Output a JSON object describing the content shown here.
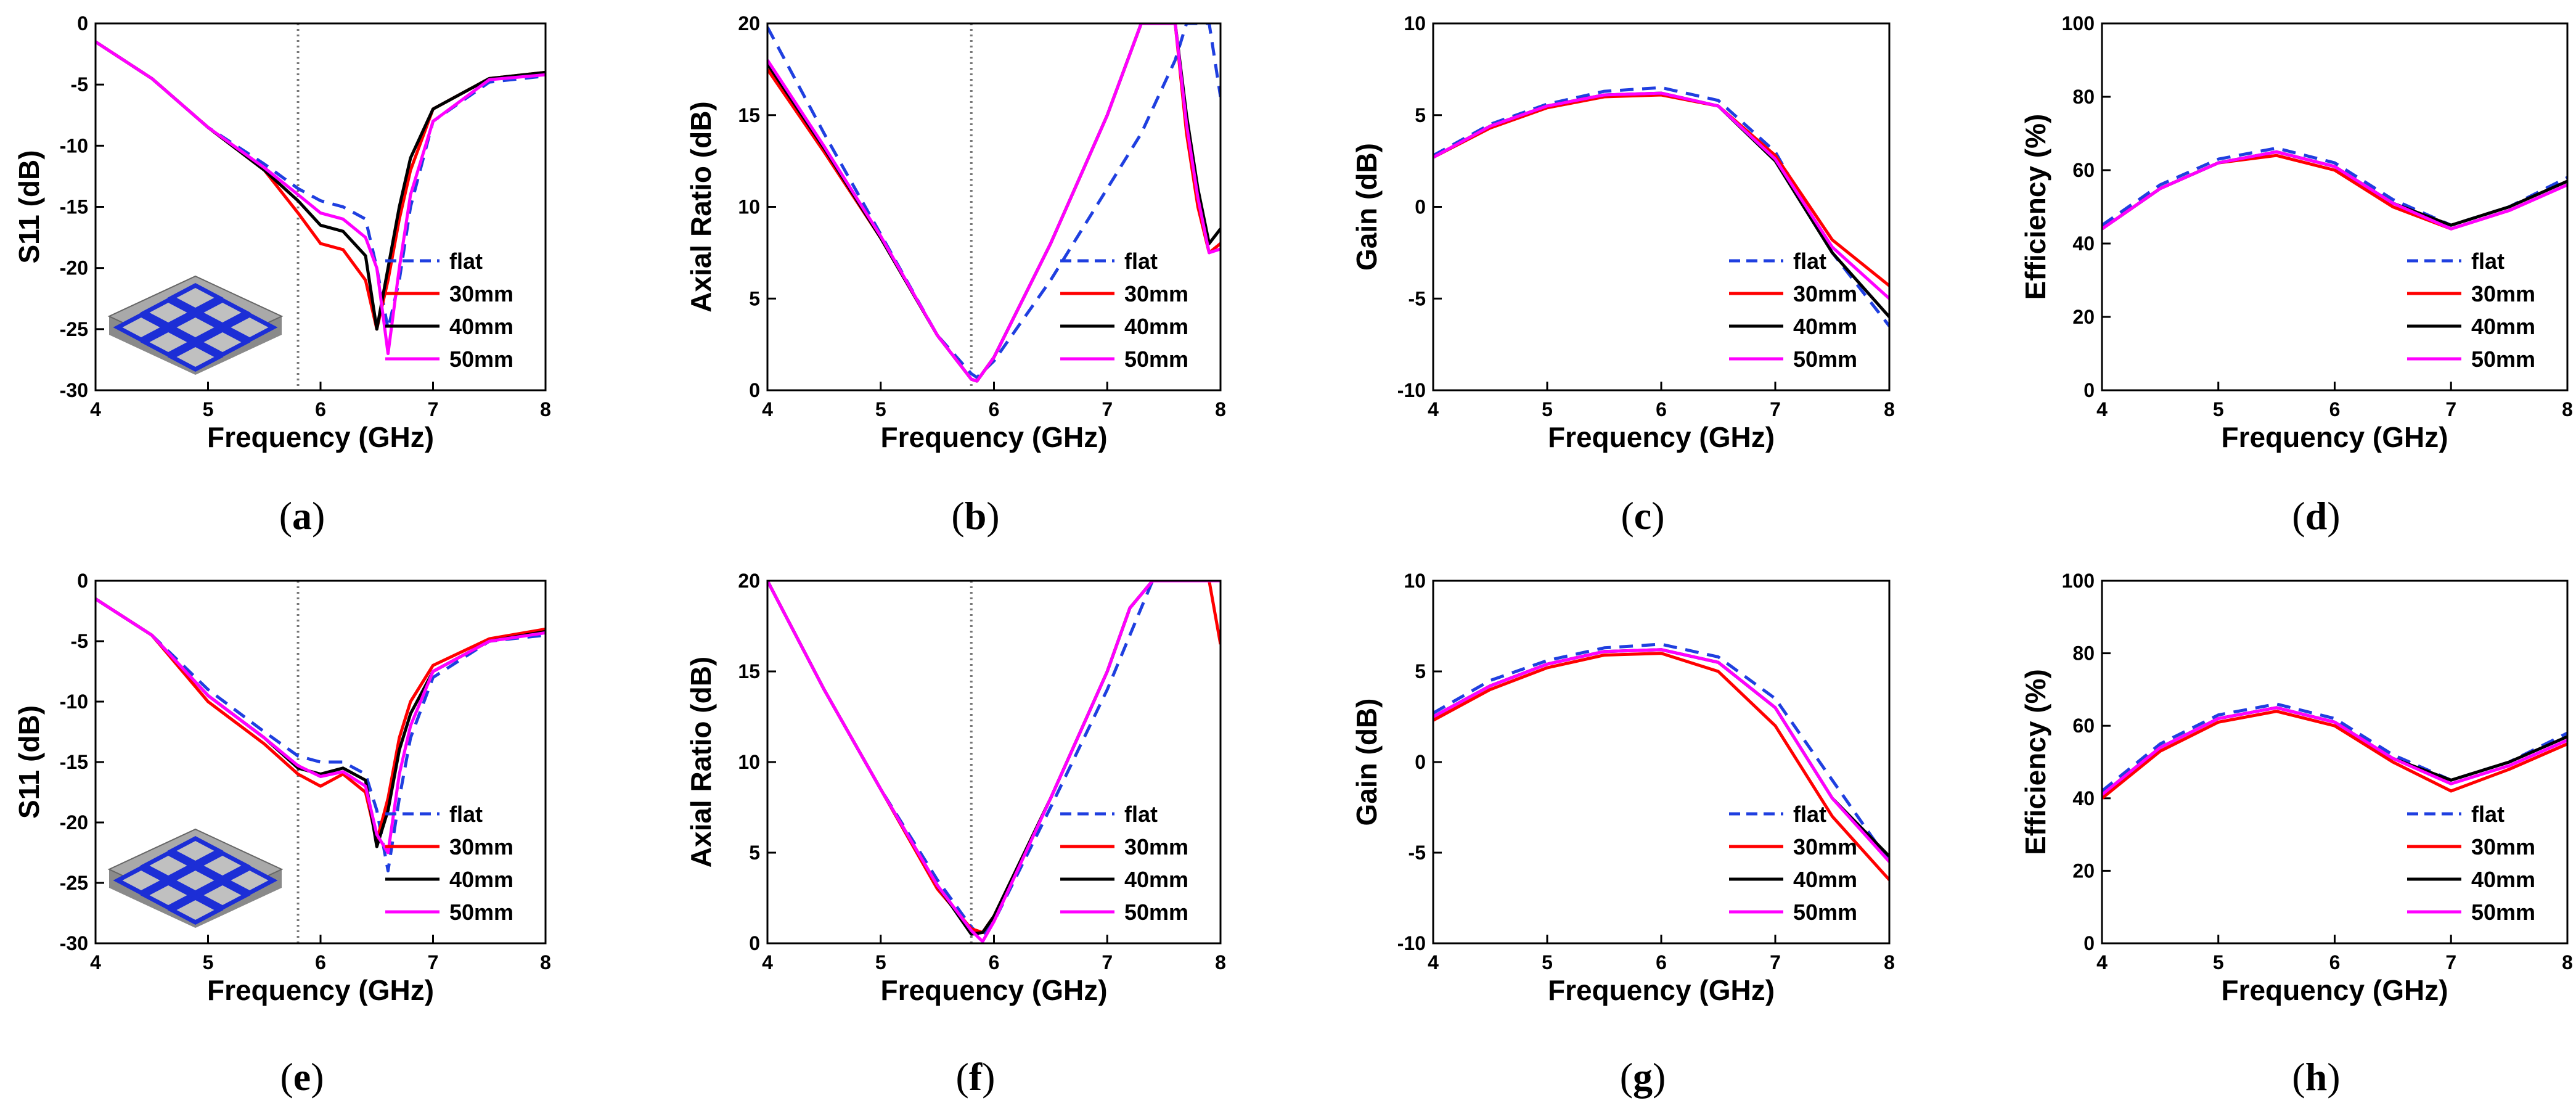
{
  "colors": {
    "flat": "#1f3fe0",
    "30mm": "#ff0000",
    "40mm": "#000000",
    "50mm": "#ff00ff",
    "marker": "#777777"
  },
  "chart_data": [
    {
      "id": "a",
      "type": "line",
      "caption_letter": "a",
      "xlabel": "Frequency (GHz)",
      "ylabel": "S11 (dB)",
      "xlim": [
        4,
        8
      ],
      "ylim": [
        -30,
        0
      ],
      "xticks": [
        4,
        5,
        6,
        7,
        8
      ],
      "yticks": [
        0,
        -5,
        -10,
        -15,
        -20,
        -25,
        -30
      ],
      "marker_x": 5.8,
      "legend_position": "bottom-right",
      "inset": "curved-array",
      "x": [
        4,
        4.5,
        5,
        5.5,
        5.8,
        6,
        6.2,
        6.4,
        6.5,
        6.6,
        6.7,
        6.8,
        7,
        7.5,
        8
      ],
      "series": [
        {
          "name": "flat",
          "values": [
            -1.5,
            -4.5,
            -8.5,
            -11.5,
            -13.5,
            -14.5,
            -15,
            -16,
            -20,
            -25,
            -21,
            -15,
            -8,
            -4.8,
            -4.3
          ]
        },
        {
          "name": "30mm",
          "values": [
            -1.5,
            -4.5,
            -8.5,
            -12,
            -15.5,
            -18,
            -18.5,
            -21,
            -25,
            -21,
            -16,
            -12,
            -7,
            -4.5,
            -4
          ]
        },
        {
          "name": "40mm",
          "values": [
            -1.5,
            -4.5,
            -8.5,
            -12,
            -14.5,
            -16.5,
            -17,
            -19,
            -25,
            -20,
            -15,
            -11,
            -7,
            -4.5,
            -4
          ]
        },
        {
          "name": "50mm",
          "values": [
            -1.5,
            -4.5,
            -8.5,
            -11.8,
            -14,
            -15.5,
            -16,
            -17.5,
            -20,
            -27,
            -20,
            -14,
            -8,
            -4.6,
            -4.2
          ]
        }
      ]
    },
    {
      "id": "b",
      "type": "line",
      "caption_letter": "b",
      "xlabel": "Frequency (GHz)",
      "ylabel": "Axial Ratio (dB)",
      "xlim": [
        4,
        8
      ],
      "ylim": [
        0,
        20
      ],
      "xticks": [
        4,
        5,
        6,
        7,
        8
      ],
      "yticks": [
        0,
        5,
        10,
        15,
        20
      ],
      "marker_x": 5.8,
      "legend_position": "bottom-right",
      "x": [
        4,
        4.5,
        5,
        5.5,
        5.8,
        5.85,
        6,
        6.5,
        7,
        7.3,
        7.6,
        7.7,
        7.8,
        7.9,
        8
      ],
      "series": [
        {
          "name": "flat",
          "values": [
            19.8,
            14,
            8.5,
            3,
            0.9,
            0.7,
            1.6,
            6,
            11,
            14,
            18,
            20,
            20,
            20,
            16
          ]
        },
        {
          "name": "30mm",
          "values": [
            17.5,
            13,
            8.3,
            3,
            0.6,
            0.5,
            1.8,
            8,
            15,
            20,
            20,
            14,
            10,
            7.5,
            8
          ]
        },
        {
          "name": "40mm",
          "values": [
            17.8,
            13.2,
            8.3,
            3,
            0.6,
            0.5,
            1.8,
            8,
            15,
            20,
            20,
            15,
            11,
            8,
            8.8
          ]
        },
        {
          "name": "50mm",
          "values": [
            18,
            13.3,
            8.4,
            3,
            0.6,
            0.5,
            1.8,
            8,
            15,
            20,
            20,
            14.5,
            10.5,
            7.5,
            7.7
          ]
        }
      ]
    },
    {
      "id": "c",
      "type": "line",
      "caption_letter": "c",
      "xlabel": "Frequency (GHz)",
      "ylabel": "Gain (dB)",
      "xlim": [
        4,
        8
      ],
      "ylim": [
        -10,
        10
      ],
      "xticks": [
        4,
        5,
        6,
        7,
        8
      ],
      "yticks": [
        10,
        5,
        0,
        -5,
        -10
      ],
      "legend_position": "bottom-right",
      "x": [
        4,
        4.5,
        5,
        5.5,
        6,
        6.5,
        7,
        7.5,
        8
      ],
      "series": [
        {
          "name": "flat",
          "values": [
            2.8,
            4.5,
            5.6,
            6.3,
            6.5,
            5.8,
            3,
            -2.5,
            -6.5
          ]
        },
        {
          "name": "30mm",
          "values": [
            2.7,
            4.3,
            5.4,
            6,
            6.1,
            5.5,
            2.8,
            -1.8,
            -4.3
          ]
        },
        {
          "name": "40mm",
          "values": [
            2.7,
            4.4,
            5.5,
            6.1,
            6.2,
            5.5,
            2.5,
            -2.5,
            -6
          ]
        },
        {
          "name": "50mm",
          "values": [
            2.7,
            4.4,
            5.5,
            6.1,
            6.2,
            5.5,
            2.6,
            -2.2,
            -5
          ]
        }
      ]
    },
    {
      "id": "d",
      "type": "line",
      "caption_letter": "d",
      "xlabel": "Frequency (GHz)",
      "ylabel": "Efficiency (%)",
      "xlim": [
        4,
        8
      ],
      "ylim": [
        0,
        100
      ],
      "xticks": [
        4,
        5,
        6,
        7,
        8
      ],
      "yticks": [
        0,
        20,
        40,
        60,
        80,
        100
      ],
      "legend_position": "bottom-right",
      "x": [
        4,
        4.5,
        5,
        5.5,
        6,
        6.5,
        7,
        7.5,
        8
      ],
      "series": [
        {
          "name": "flat",
          "values": [
            45,
            56,
            63,
            66,
            62,
            52,
            45,
            50,
            58
          ]
        },
        {
          "name": "30mm",
          "values": [
            44,
            55,
            62,
            64,
            60,
            50,
            44,
            49,
            56
          ]
        },
        {
          "name": "40mm",
          "values": [
            44,
            55,
            62,
            65,
            61,
            51,
            45,
            50,
            57
          ]
        },
        {
          "name": "50mm",
          "values": [
            44,
            55,
            62,
            65,
            61,
            51,
            44,
            49,
            56
          ]
        }
      ]
    },
    {
      "id": "e",
      "type": "line",
      "caption_letter": "e",
      "xlabel": "Frequency (GHz)",
      "ylabel": "S11 (dB)",
      "xlim": [
        4,
        8
      ],
      "ylim": [
        -30,
        0
      ],
      "xticks": [
        4,
        5,
        6,
        7,
        8
      ],
      "yticks": [
        0,
        -5,
        -10,
        -15,
        -20,
        -25,
        -30
      ],
      "marker_x": 5.8,
      "legend_position": "bottom-right",
      "inset": "curved-array",
      "x": [
        4,
        4.5,
        5,
        5.5,
        5.8,
        6,
        6.2,
        6.4,
        6.5,
        6.6,
        6.7,
        6.8,
        7,
        7.5,
        8
      ],
      "series": [
        {
          "name": "flat",
          "values": [
            -1.5,
            -4.5,
            -9,
            -12.5,
            -14.5,
            -15,
            -15,
            -16,
            -19,
            -24,
            -18,
            -13,
            -8,
            -5,
            -4.5
          ]
        },
        {
          "name": "30mm",
          "values": [
            -1.5,
            -4.5,
            -10,
            -13.5,
            -16,
            -17,
            -16,
            -17.5,
            -21.5,
            -18,
            -13,
            -10,
            -7,
            -4.8,
            -4
          ]
        },
        {
          "name": "40mm",
          "values": [
            -1.5,
            -4.5,
            -9.5,
            -13,
            -15.5,
            -16,
            -15.5,
            -16.5,
            -22,
            -19,
            -14,
            -11,
            -7.5,
            -5,
            -4.2
          ]
        },
        {
          "name": "50mm",
          "values": [
            -1.5,
            -4.5,
            -9.5,
            -13,
            -15.3,
            -16.2,
            -15.8,
            -17,
            -21,
            -22.5,
            -16,
            -12,
            -7.5,
            -5,
            -4.3
          ]
        }
      ]
    },
    {
      "id": "f",
      "type": "line",
      "caption_letter": "f",
      "xlabel": "Frequency (GHz)",
      "ylabel": "Axial Ratio (dB)",
      "xlim": [
        4,
        8
      ],
      "ylim": [
        0,
        20
      ],
      "xticks": [
        4,
        5,
        6,
        7,
        8
      ],
      "yticks": [
        0,
        5,
        10,
        15,
        20
      ],
      "marker_x": 5.8,
      "legend_position": "bottom-right",
      "x": [
        4,
        4.5,
        5,
        5.5,
        5.8,
        5.9,
        6,
        6.5,
        7,
        7.2,
        7.4,
        7.6,
        7.8,
        7.9,
        8
      ],
      "series": [
        {
          "name": "flat",
          "values": [
            20,
            14,
            8.5,
            3.5,
            0.9,
            0.3,
            1.2,
            7.5,
            14,
            17,
            20,
            20,
            20,
            20,
            20
          ]
        },
        {
          "name": "30mm",
          "values": [
            20,
            14,
            8.5,
            3,
            0.8,
            0.6,
            1.5,
            8,
            15,
            18.5,
            20,
            20,
            20,
            20,
            16.5
          ]
        },
        {
          "name": "40mm",
          "values": [
            20,
            14,
            8.5,
            3.2,
            0.5,
            0.6,
            1.5,
            8,
            15,
            18.5,
            20,
            20,
            20,
            20,
            20
          ]
        },
        {
          "name": "50mm",
          "values": [
            20,
            14,
            8.5,
            3.2,
            0.7,
            0.1,
            1.2,
            8,
            15,
            18.5,
            20,
            20,
            20,
            20,
            20
          ]
        }
      ]
    },
    {
      "id": "g",
      "type": "line",
      "caption_letter": "g",
      "xlabel": "Frequency (GHz)",
      "ylabel": "Gain (dB)",
      "xlim": [
        4,
        8
      ],
      "ylim": [
        -10,
        10
      ],
      "xticks": [
        4,
        5,
        6,
        7,
        8
      ],
      "yticks": [
        10,
        5,
        0,
        -5,
        -10
      ],
      "legend_position": "bottom-right",
      "x": [
        4,
        4.5,
        5,
        5.5,
        6,
        6.5,
        7,
        7.5,
        8
      ],
      "series": [
        {
          "name": "flat",
          "values": [
            2.7,
            4.5,
            5.6,
            6.3,
            6.5,
            5.8,
            3.5,
            -1,
            -5.5
          ]
        },
        {
          "name": "30mm",
          "values": [
            2.3,
            4,
            5.2,
            5.9,
            6,
            5,
            2,
            -3,
            -6.5
          ]
        },
        {
          "name": "40mm",
          "values": [
            2.5,
            4.2,
            5.4,
            6.1,
            6.2,
            5.5,
            3,
            -2,
            -5.2
          ]
        },
        {
          "name": "50mm",
          "values": [
            2.5,
            4.2,
            5.4,
            6.1,
            6.2,
            5.5,
            3,
            -2,
            -5.5
          ]
        }
      ]
    },
    {
      "id": "h",
      "type": "line",
      "caption_letter": "h",
      "xlabel": "Frequency (GHz)",
      "ylabel": "Efficiency (%)",
      "xlim": [
        4,
        8
      ],
      "ylim": [
        0,
        100
      ],
      "xticks": [
        4,
        5,
        6,
        7,
        8
      ],
      "yticks": [
        0,
        20,
        40,
        60,
        80,
        100
      ],
      "legend_position": "bottom-right",
      "x": [
        4,
        4.5,
        5,
        5.5,
        6,
        6.5,
        7,
        7.5,
        8
      ],
      "series": [
        {
          "name": "flat",
          "values": [
            42,
            55,
            63,
            66,
            62,
            52,
            45,
            50,
            58
          ]
        },
        {
          "name": "30mm",
          "values": [
            40,
            53,
            61,
            64,
            60,
            50,
            42,
            48,
            55
          ]
        },
        {
          "name": "40mm",
          "values": [
            41,
            54,
            62,
            65,
            61,
            51,
            45,
            50,
            57
          ]
        },
        {
          "name": "50mm",
          "values": [
            41,
            54,
            62,
            65,
            61,
            51,
            44,
            49,
            56
          ]
        }
      ]
    }
  ]
}
